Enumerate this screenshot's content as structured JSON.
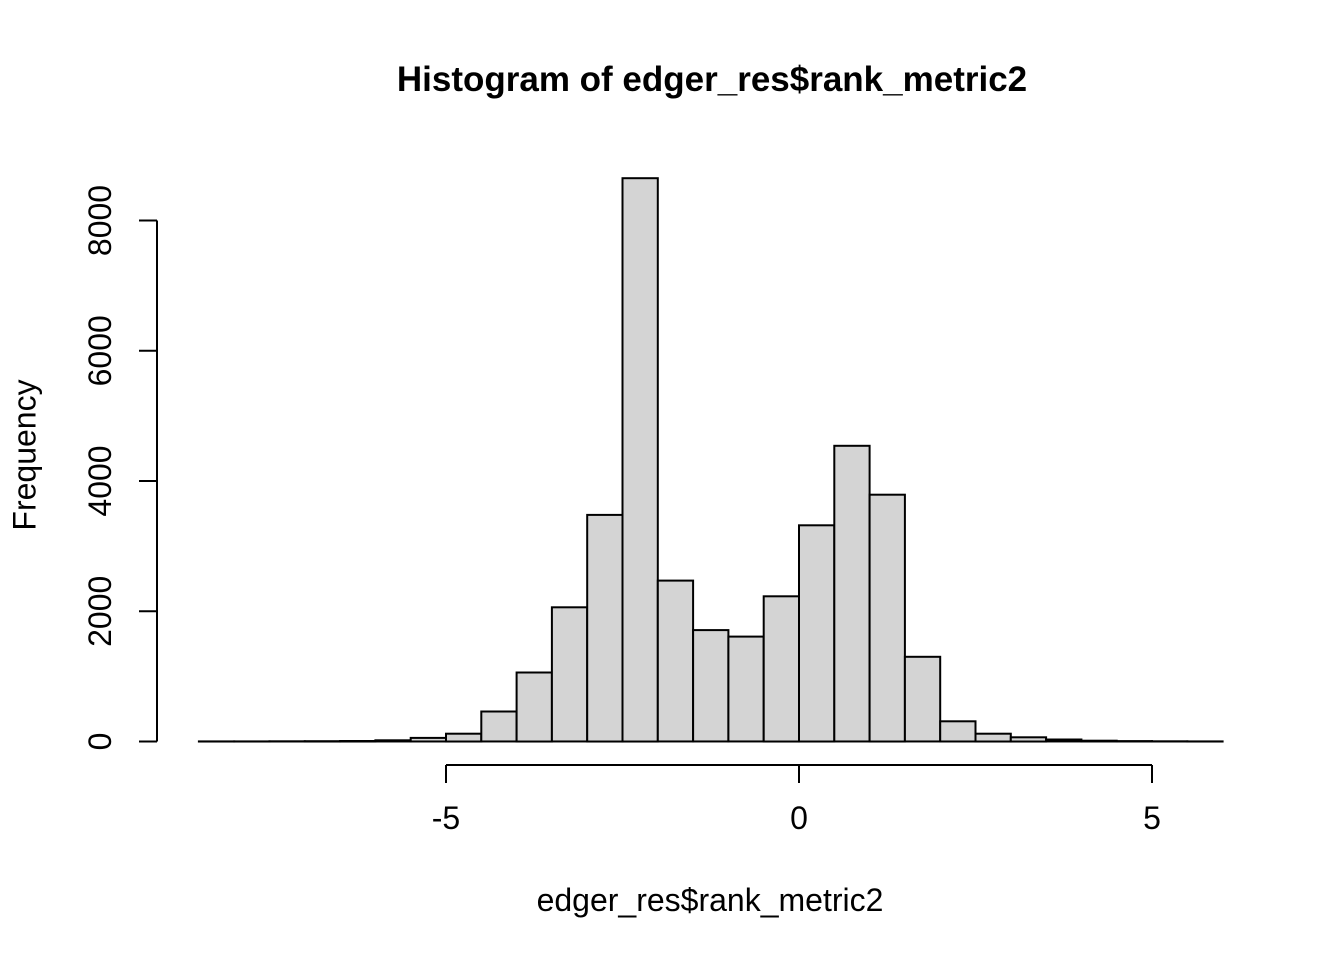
{
  "chart_data": {
    "type": "bar",
    "subtype": "histogram",
    "title": "Histogram of edger_res$rank_metric2",
    "xlabel": "edger_res$rank_metric2",
    "ylabel": "Frequency",
    "bin_width": 0.5,
    "bin_edges": [
      -8.5,
      -8.0,
      -7.5,
      -7.0,
      -6.5,
      -6.0,
      -5.5,
      -5.0,
      -4.5,
      -4.0,
      -3.5,
      -3.0,
      -2.5,
      -2.0,
      -1.5,
      -1.0,
      -0.5,
      0.0,
      0.5,
      1.0,
      1.5,
      2.0,
      2.5,
      3.0,
      3.5,
      4.0,
      4.5,
      5.0,
      5.5,
      6.0
    ],
    "frequencies": [
      2,
      2,
      3,
      5,
      8,
      18,
      55,
      120,
      460,
      1060,
      2060,
      3480,
      8650,
      2470,
      1710,
      1610,
      2230,
      3320,
      4540,
      3790,
      1300,
      310,
      120,
      65,
      30,
      12,
      6,
      3,
      2
    ],
    "x_ticks": [
      -5,
      0,
      5
    ],
    "y_ticks": [
      0,
      2000,
      4000,
      6000,
      8000
    ],
    "xlim": [
      -8.5,
      6
    ],
    "ylim": [
      0,
      8000
    ],
    "grid": false,
    "legend": false,
    "bar_fill": "#d4d4d4",
    "bar_border": "#000000",
    "axis_color": "#000000",
    "background": "#ffffff"
  }
}
